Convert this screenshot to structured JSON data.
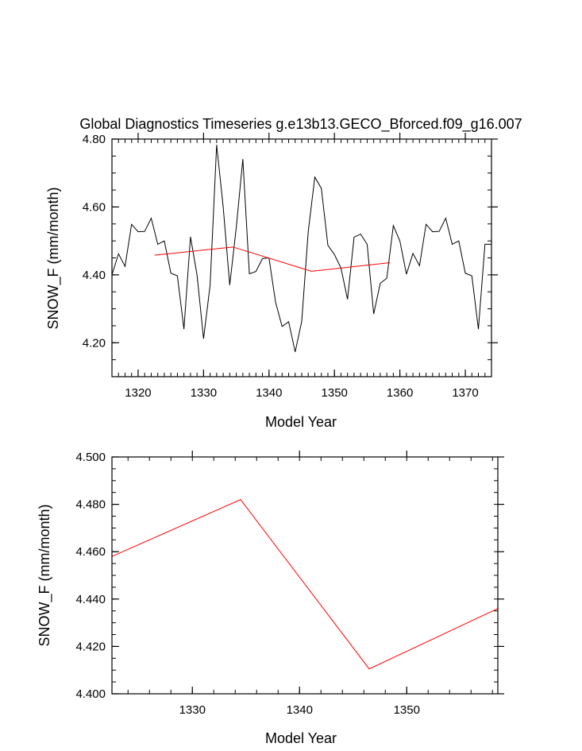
{
  "title": "Global Diagnostics Timeseries g.e13b13.GECO_Bforced.f09_g16.007",
  "colors": {
    "annual": "#000000",
    "mean": "#ff0000",
    "axis": "#000000"
  },
  "chart_data": [
    {
      "type": "line",
      "title": "Global Diagnostics Timeseries g.e13b13.GECO_Bforced.f09_g16.007",
      "xlabel": "Model Year",
      "ylabel": "SNOW_F (mm/month)",
      "xlim": [
        1316,
        1374
      ],
      "ylim": [
        4.1,
        4.8
      ],
      "xticks": [
        1320,
        1330,
        1340,
        1350,
        1360,
        1370
      ],
      "xtick_labels": [
        "1320",
        "1330",
        "1340",
        "1350",
        "1360",
        "1370"
      ],
      "yticks": [
        4.2,
        4.4,
        4.6,
        4.8
      ],
      "ytick_labels": [
        "4.20",
        "4.40",
        "4.60",
        "4.80"
      ],
      "series": [
        {
          "color": "#000000",
          "x": [
            1316,
            1317,
            1318,
            1319,
            1320,
            1321,
            1322,
            1323,
            1324,
            1325,
            1326,
            1327,
            1328,
            1329,
            1330,
            1331,
            1332,
            1333,
            1334,
            1335,
            1336,
            1337,
            1338,
            1339,
            1340,
            1341,
            1342,
            1343,
            1344,
            1345,
            1346,
            1347,
            1348,
            1349,
            1350,
            1351,
            1352,
            1353,
            1354,
            1355,
            1356,
            1357,
            1358,
            1359,
            1360,
            1361,
            1362,
            1363,
            1364,
            1365,
            1366,
            1367,
            1368,
            1369,
            1370,
            1371,
            1372,
            1373,
            1374
          ],
          "y": [
            4.4,
            4.462,
            4.425,
            4.549,
            4.527,
            4.528,
            4.567,
            4.49,
            4.5,
            4.405,
            4.397,
            4.24,
            4.512,
            4.4,
            4.212,
            4.37,
            4.783,
            4.6,
            4.37,
            4.54,
            4.741,
            4.403,
            4.41,
            4.448,
            4.45,
            4.32,
            4.248,
            4.262,
            4.173,
            4.263,
            4.528,
            4.688,
            4.655,
            4.487,
            4.46,
            4.42,
            4.328,
            4.511,
            4.52,
            4.49,
            4.285,
            4.375,
            4.39,
            4.545,
            4.5,
            4.402,
            4.463,
            4.427,
            4.549,
            4.527,
            4.528,
            4.567,
            4.49,
            4.5,
            4.405,
            4.397,
            4.24,
            4.49,
            4.49
          ]
        },
        {
          "color": "#ff0000",
          "x": [
            1322.5,
            1334.5,
            1346.5,
            1358.5
          ],
          "y": [
            4.458,
            4.482,
            4.4105,
            4.436
          ]
        }
      ]
    },
    {
      "type": "line",
      "title": "",
      "xlabel": "Model Year",
      "ylabel": "SNOW_F (mm/month)",
      "xlim": [
        1322.5,
        1358.5
      ],
      "ylim": [
        4.4,
        4.5
      ],
      "xticks": [
        1330,
        1340,
        1350
      ],
      "xtick_labels": [
        "1330",
        "1340",
        "1350"
      ],
      "yticks": [
        4.4,
        4.42,
        4.44,
        4.46,
        4.48,
        4.5
      ],
      "ytick_labels": [
        "4.400",
        "4.420",
        "4.440",
        "4.460",
        "4.480",
        "4.500"
      ],
      "series": [
        {
          "color": "#ff0000",
          "x": [
            1322.5,
            1334.5,
            1346.5,
            1358.5
          ],
          "y": [
            4.458,
            4.482,
            4.4105,
            4.436
          ]
        }
      ]
    }
  ]
}
